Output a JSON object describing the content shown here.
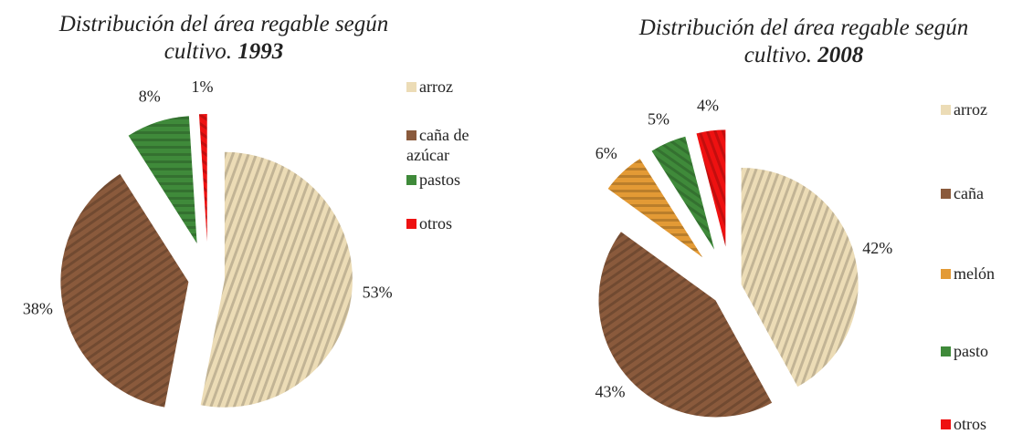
{
  "chart_data": [
    {
      "type": "pie",
      "title": "Distribución del área regable según cultivo.",
      "title_year": "1993",
      "categories": [
        "arroz",
        "caña de azúcar",
        "pastos",
        "otros"
      ],
      "values": [
        53,
        38,
        8,
        1
      ],
      "value_labels": [
        "53%",
        "38%",
        "8%",
        "1%"
      ],
      "colors": [
        "#ecdcb6",
        "#8a5a3c",
        "#3f8a3a",
        "#ee1111"
      ]
    },
    {
      "type": "pie",
      "title": "Distribución del área regable según cultivo.",
      "title_year": "2008",
      "categories": [
        "arroz",
        "caña",
        "melón",
        "pasto",
        "otros"
      ],
      "values": [
        42,
        43,
        6,
        5,
        4
      ],
      "value_labels": [
        "42%",
        "43%",
        "6%",
        "5%",
        "4%"
      ],
      "colors": [
        "#ecdcb6",
        "#8a5a3c",
        "#e39a35",
        "#3f8a3a",
        "#ee1111"
      ]
    }
  ]
}
